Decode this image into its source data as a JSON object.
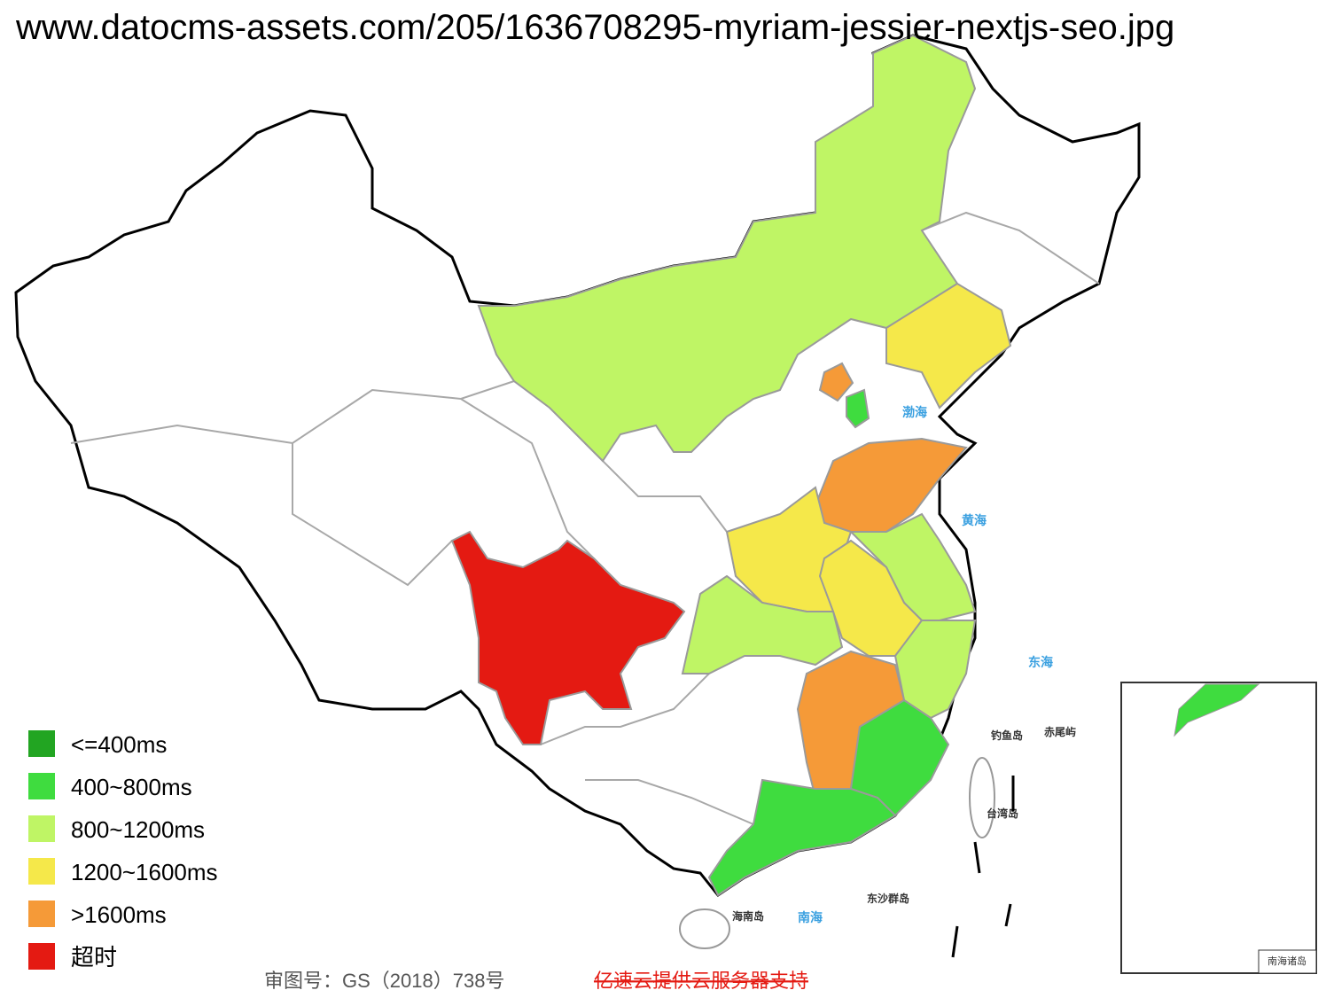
{
  "header": {
    "url": "www.datocms-assets.com/205/1636708295-myriam-jessier-nextjs-seo.jpg"
  },
  "legend": [
    {
      "label": "<=400ms",
      "color": "#22a522"
    },
    {
      "label": "400~800ms",
      "color": "#3fdc3f"
    },
    {
      "label": "800~1200ms",
      "color": "#bff565"
    },
    {
      "label": "1200~1600ms",
      "color": "#f5e84a"
    },
    {
      "label": ">1600ms",
      "color": "#f59a38"
    },
    {
      "label": "超时",
      "color": "#e41a12"
    }
  ],
  "map_labels": {
    "bohai": "渤海",
    "huanghai": "黄海",
    "donghai": "东海",
    "diaoyu": "钓鱼岛",
    "chiwei": "赤尾屿",
    "taiwan": "台湾岛",
    "dongsha": "东沙群岛",
    "nanhai": "南海",
    "hainan": "海南岛",
    "inset": "南海诸岛"
  },
  "footer": {
    "approval": "审图号：GS（2018）738号",
    "sponsor": "亿速云提供云服务器支持"
  }
}
